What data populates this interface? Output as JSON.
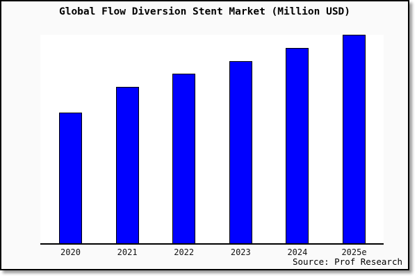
{
  "title": "Global Flow Diversion Stent Market (Million USD)",
  "source_note": "Source: Prof Research",
  "colors": {
    "bar_fill": "#0000ff",
    "bar_border": "#000000",
    "card_background": "#fafafa",
    "plot_background": "#ffffff",
    "axis_line": "#000000",
    "title_text": "#000000",
    "shadow": "#999999"
  },
  "chart_data": {
    "type": "bar",
    "title": "Global Flow Diversion Stent Market (Million USD)",
    "categories": [
      "2020",
      "2021",
      "2022",
      "2023",
      "2024",
      "2025e"
    ],
    "values": [
      62.7,
      75.0,
      81.3,
      87.3,
      93.7,
      100
    ],
    "value_note": "No y-axis, gridlines or data labels are shown in the chart; values are estimated relative bar heights as a percentage of the tallest bar (2025e = 100).",
    "xlabel": "",
    "ylabel": "",
    "ylim": [
      0,
      100
    ],
    "grid": false,
    "legend": false,
    "y_axis_shown": false,
    "x_axis_shown": true,
    "annotations": [
      "Source: Prof Research"
    ]
  }
}
